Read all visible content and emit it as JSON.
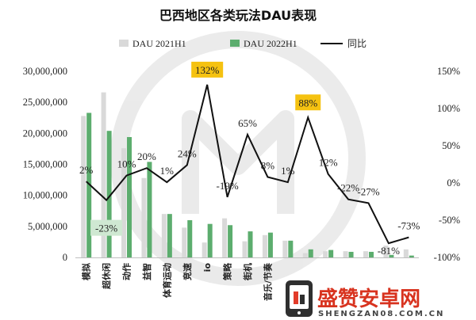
{
  "chart_data": {
    "type": "bar",
    "title": "巴西地区各类玩法DAU表现",
    "categories": [
      "模拟",
      "超休闲",
      "动作",
      "益智",
      "体育运动",
      "竞速",
      "io",
      "策略",
      "街机",
      "音乐/节奏",
      "",
      "",
      "",
      "",
      "",
      "",
      ""
    ],
    "series": [
      {
        "name": "DAU 2021H1",
        "kind": "bar",
        "axis": "left",
        "color": "#d9d9d9",
        "values": [
          22800000,
          26600000,
          17600000,
          12800000,
          7000000,
          4800000,
          2400000,
          6300000,
          2600000,
          3600000,
          2700000,
          700000,
          1000000,
          1000000,
          1000000,
          1900000,
          1300000
        ]
      },
      {
        "name": "DAU 2022H1",
        "kind": "bar",
        "axis": "left",
        "color": "#5cad6e",
        "values": [
          23300000,
          20400000,
          19400000,
          15400000,
          7000000,
          6000000,
          5400000,
          5200000,
          4200000,
          4000000,
          2700000,
          1300000,
          1200000,
          900000,
          900000,
          400000,
          300000
        ]
      },
      {
        "name": "同比",
        "kind": "line",
        "axis": "right",
        "color": "#111111",
        "values": [
          2,
          -23,
          10,
          20,
          1,
          24,
          132,
          -19,
          65,
          8,
          1,
          88,
          12,
          -22,
          -27,
          -81,
          -73
        ]
      }
    ],
    "line_labels": [
      "2%",
      "-23%",
      "10%",
      "20%",
      "1%",
      "24%",
      "132%",
      "-19%",
      "65%",
      "8%",
      "1%",
      "88%",
      "12%",
      "-22%",
      "-27%",
      "-81%",
      "-73%"
    ],
    "highlighted_labels": {
      "6": "#f5c211",
      "11": "#f5c211",
      "1": "#cfe8d2"
    },
    "y_left": {
      "min": 0,
      "max": 30000000,
      "ticks": [
        "0",
        "5,000,000",
        "10,000,000",
        "15,000,000",
        "20,000,000",
        "25,000,000",
        "30,000,000"
      ]
    },
    "y_right": {
      "min": -100,
      "max": 150,
      "ticks": [
        "-100%",
        "-50%",
        "0%",
        "50%",
        "100%",
        "150%"
      ]
    },
    "legend_position": "top-center",
    "grid": false
  },
  "watermark": {
    "brand_text": "盛赞安卓网",
    "url_text": "SHENGZAN08.COM.CN",
    "icon": "phone-logo-icon"
  }
}
